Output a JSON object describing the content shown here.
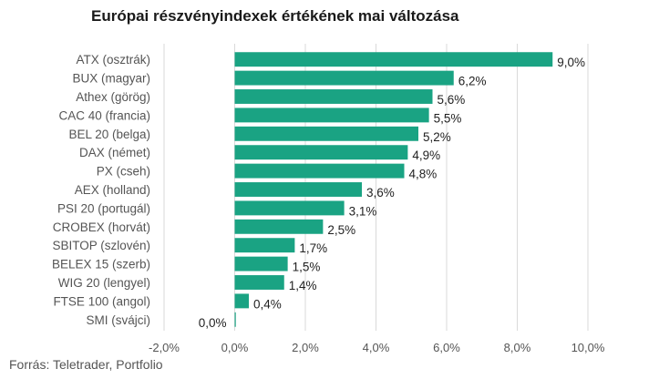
{
  "chart_data": {
    "type": "bar",
    "orientation": "horizontal",
    "title": "Európai részvényindexek értékének mai változása",
    "categories": [
      "ATX (osztrák)",
      "BUX (magyar)",
      "Athex (görög)",
      "CAC 40 (francia)",
      "BEL 20 (belga)",
      "DAX (német)",
      "PX (cseh)",
      "AEX (holland)",
      "PSI 20 (portugál)",
      "CROBEX (horvát)",
      "SBITOP (szlovén)",
      "BELEX 15 (szerb)",
      "WIG 20 (lengyel)",
      "FTSE 100 (angol)",
      "SMI (svájci)"
    ],
    "values": [
      9.0,
      6.2,
      5.6,
      5.5,
      5.2,
      4.9,
      4.8,
      3.6,
      3.1,
      2.5,
      1.7,
      1.5,
      1.4,
      0.4,
      0.0
    ],
    "value_labels": [
      "9,0%",
      "6,2%",
      "5,6%",
      "5,5%",
      "5,2%",
      "4,9%",
      "4,8%",
      "3,6%",
      "3,1%",
      "2,5%",
      "1,7%",
      "1,5%",
      "1,4%",
      "0,4%",
      "0,0%"
    ],
    "xlim": [
      -2,
      10
    ],
    "xticks": [
      -2,
      0,
      2,
      4,
      6,
      8,
      10
    ],
    "xtick_labels": [
      "-2,0%",
      "0,0%",
      "2,0%",
      "4,0%",
      "6,0%",
      "8,0%",
      "10,0%"
    ],
    "xlabel": "",
    "ylabel": "",
    "grid": "vertical",
    "bar_color": "#1aa383",
    "grid_color": "#d9d9d9",
    "source": "Forrás: Teletrader, Portfolio"
  }
}
